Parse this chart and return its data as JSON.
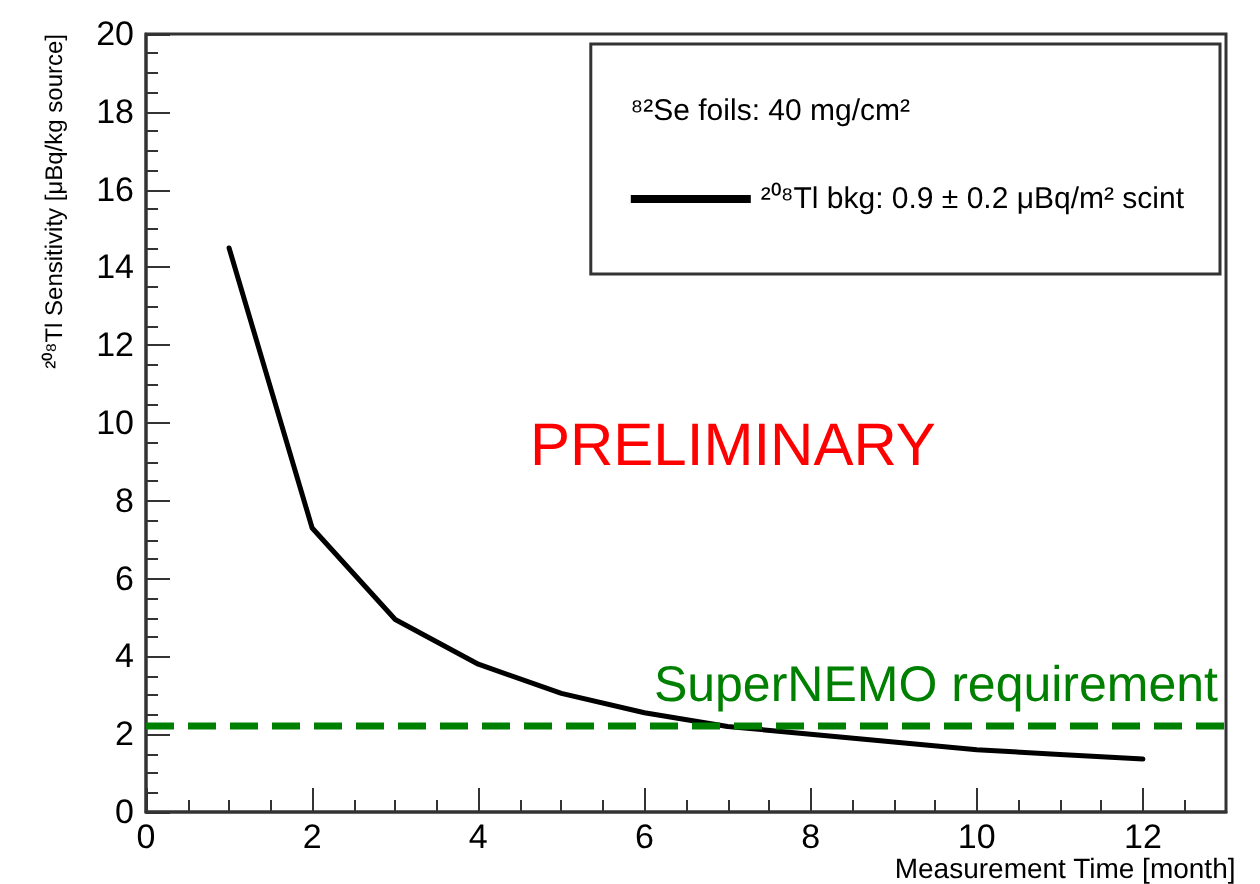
{
  "chart_data": {
    "type": "line",
    "xlabel": "Measurement Time [month]",
    "ylabel": "²⁰⁸Tl Sensitivity [μBq/kg source]",
    "legend_title": "⁸²Se foils: 40 mg/cm²",
    "annotations": [
      "PRELIMINARY"
    ],
    "x": [
      1,
      2,
      3,
      4,
      5,
      6,
      7,
      8,
      9,
      10,
      11,
      12
    ],
    "series": [
      {
        "name": "²⁰⁸Tl bkg: 0.9 ± 0.2 μBq/m² scint",
        "color": "#000000",
        "values": [
          14.5,
          7.3,
          4.95,
          3.8,
          3.05,
          2.55,
          2.2,
          2.0,
          1.8,
          1.6,
          1.48,
          1.36
        ]
      }
    ],
    "xlim": [
      0,
      13
    ],
    "xticks": [
      0,
      2,
      4,
      6,
      8,
      10,
      12
    ],
    "ylim": [
      0,
      20
    ],
    "yticks": [
      0,
      2,
      4,
      6,
      8,
      10,
      12,
      14,
      16,
      18,
      20
    ],
    "ref_lines": [
      {
        "axis": "y",
        "value": 2.2,
        "label": "SuperNEMO requirement",
        "color": "#008000",
        "line_style": "dashed"
      }
    ],
    "legend": "top right",
    "grid": false,
    "marker": "none",
    "line_style": "solid"
  }
}
